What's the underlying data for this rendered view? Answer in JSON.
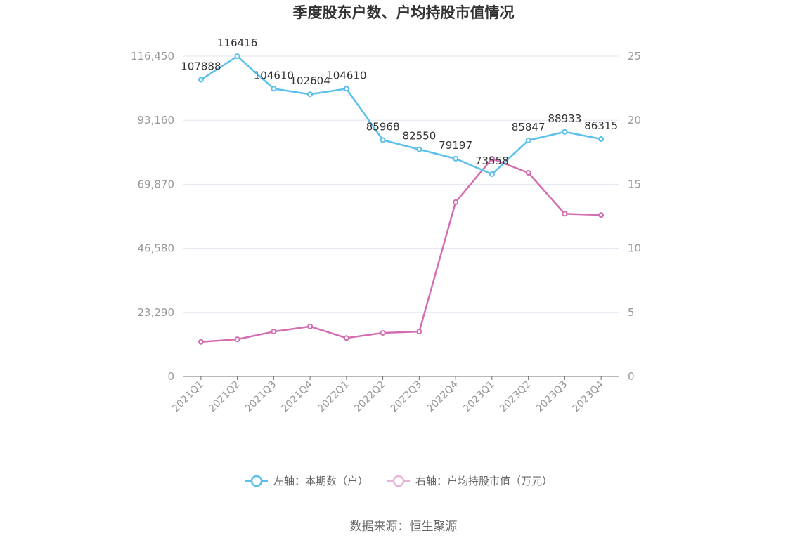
{
  "chart_data": {
    "type": "line",
    "title": "季度股东户数、户均持股市值情况",
    "categories": [
      "2021Q1",
      "2021Q2",
      "2021Q3",
      "2021Q4",
      "2022Q1",
      "2022Q2",
      "2022Q3",
      "2022Q4",
      "2023Q1",
      "2023Q2",
      "2023Q3",
      "2023Q4"
    ],
    "series": [
      {
        "name": "左轴：本期数（户）",
        "axis": "left",
        "color": "#5bc0eb",
        "values": [
          107888,
          116416,
          104610,
          102604,
          104610,
          85968,
          82550,
          79197,
          73558,
          85847,
          88933,
          86315
        ],
        "labels": [
          "107888",
          "116416",
          "104610",
          "102604",
          "104610",
          "85968",
          "82550",
          "79197",
          "73558",
          "85847",
          "88933",
          "86315"
        ]
      },
      {
        "name": "右轴：户均持股市值（万元）",
        "axis": "right",
        "color": "#d46eb3",
        "values": [
          2.7,
          2.9,
          3.5,
          3.9,
          3.0,
          3.4,
          3.5,
          13.6,
          17.0,
          15.9,
          12.7,
          12.6
        ]
      }
    ],
    "left_axis": {
      "min": 0,
      "max": 116450,
      "ticks": [
        0,
        23290,
        46580,
        69870,
        93160,
        116450
      ],
      "tick_labels": [
        "0",
        "23,290",
        "46,580",
        "69,870",
        "93,160",
        "116,450"
      ]
    },
    "right_axis": {
      "min": 0,
      "max": 25,
      "ticks": [
        0,
        5,
        10,
        15,
        20,
        25
      ],
      "tick_labels": [
        "0",
        "5",
        "10",
        "15",
        "20",
        "25"
      ]
    },
    "grid": true,
    "legend_position": "bottom"
  },
  "source": "数据来源：恒生聚源"
}
